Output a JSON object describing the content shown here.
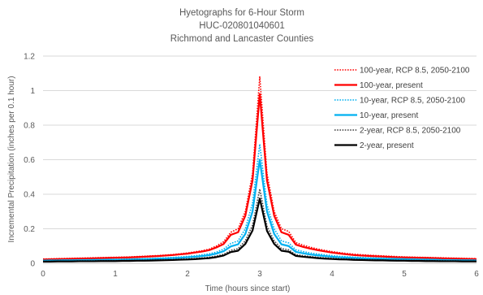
{
  "chart_data": {
    "type": "line",
    "title": [
      "Hyetographs for 6-Hour Storm",
      "HUC-020801040601",
      "Richmond and Lancaster Counties"
    ],
    "xlabel": "Time (hours since start)",
    "ylabel": "Incremental Precipitation (inches per 0.1 hour)",
    "xlim": [
      0,
      6
    ],
    "ylim": [
      0,
      1.2
    ],
    "xticks": [
      "0",
      "1",
      "2",
      "3",
      "4",
      "5",
      "6"
    ],
    "yticks": [
      "0",
      "0.2",
      "0.4",
      "0.6",
      "0.8",
      "1",
      "1.2"
    ],
    "grid": "horizontal",
    "legend_position": "top-right",
    "x": [
      0,
      0.1,
      0.2,
      0.3,
      0.4,
      0.5,
      0.6,
      0.7,
      0.8,
      0.9,
      1.0,
      1.1,
      1.2,
      1.3,
      1.4,
      1.5,
      1.6,
      1.7,
      1.8,
      1.9,
      2.0,
      2.1,
      2.2,
      2.3,
      2.4,
      2.5,
      2.6,
      2.7,
      2.8,
      2.9,
      3.0,
      3.1,
      3.2,
      3.3,
      3.4,
      3.5,
      3.6,
      3.7,
      3.8,
      3.9,
      4.0,
      4.1,
      4.2,
      4.3,
      4.4,
      4.5,
      4.6,
      4.7,
      4.8,
      4.9,
      5.0,
      5.1,
      5.2,
      5.3,
      5.4,
      5.5,
      5.6,
      5.7,
      5.8,
      5.9,
      6.0
    ],
    "series": [
      {
        "name": "100-year, RCP 8.5, 2050-2100",
        "color": "#ff0000",
        "dash": "dotted",
        "values": [
          0.025,
          0.026,
          0.027,
          0.028,
          0.029,
          0.03,
          0.031,
          0.032,
          0.033,
          0.034,
          0.035,
          0.036,
          0.037,
          0.039,
          0.041,
          0.043,
          0.045,
          0.048,
          0.051,
          0.055,
          0.06,
          0.066,
          0.073,
          0.082,
          0.1,
          0.125,
          0.18,
          0.2,
          0.3,
          0.52,
          1.08,
          0.52,
          0.3,
          0.2,
          0.185,
          0.12,
          0.105,
          0.093,
          0.083,
          0.075,
          0.068,
          0.062,
          0.057,
          0.053,
          0.05,
          0.047,
          0.045,
          0.043,
          0.041,
          0.039,
          0.037,
          0.036,
          0.035,
          0.034,
          0.033,
          0.032,
          0.031,
          0.03,
          0.029,
          0.028,
          0.027
        ]
      },
      {
        "name": "100-year, present",
        "color": "#ff0000",
        "dash": "solid",
        "values": [
          0.022,
          0.023,
          0.024,
          0.025,
          0.026,
          0.027,
          0.028,
          0.029,
          0.03,
          0.031,
          0.032,
          0.033,
          0.034,
          0.036,
          0.038,
          0.04,
          0.042,
          0.045,
          0.048,
          0.052,
          0.056,
          0.062,
          0.068,
          0.076,
          0.092,
          0.112,
          0.165,
          0.18,
          0.275,
          0.48,
          0.98,
          0.48,
          0.275,
          0.18,
          0.165,
          0.108,
          0.095,
          0.085,
          0.076,
          0.069,
          0.062,
          0.057,
          0.052,
          0.048,
          0.045,
          0.043,
          0.041,
          0.039,
          0.037,
          0.035,
          0.034,
          0.033,
          0.032,
          0.031,
          0.03,
          0.029,
          0.028,
          0.027,
          0.026,
          0.025,
          0.024
        ]
      },
      {
        "name": "10-year, RCP 8.5, 2050-2100",
        "color": "#00b0f0",
        "dash": "dotted",
        "values": [
          0.018,
          0.019,
          0.019,
          0.02,
          0.02,
          0.021,
          0.021,
          0.022,
          0.022,
          0.023,
          0.023,
          0.024,
          0.025,
          0.026,
          0.027,
          0.028,
          0.03,
          0.032,
          0.034,
          0.037,
          0.04,
          0.044,
          0.049,
          0.055,
          0.065,
          0.082,
          0.115,
          0.13,
          0.2,
          0.35,
          0.69,
          0.34,
          0.2,
          0.13,
          0.118,
          0.078,
          0.068,
          0.06,
          0.054,
          0.049,
          0.045,
          0.041,
          0.038,
          0.036,
          0.034,
          0.032,
          0.031,
          0.03,
          0.029,
          0.028,
          0.027,
          0.026,
          0.025,
          0.024,
          0.023,
          0.022,
          0.021,
          0.021,
          0.02,
          0.02,
          0.019
        ]
      },
      {
        "name": "10-year, present",
        "color": "#00b0f0",
        "dash": "solid",
        "values": [
          0.015,
          0.016,
          0.016,
          0.017,
          0.017,
          0.018,
          0.018,
          0.019,
          0.019,
          0.02,
          0.02,
          0.021,
          0.022,
          0.023,
          0.024,
          0.025,
          0.027,
          0.028,
          0.03,
          0.032,
          0.035,
          0.038,
          0.042,
          0.047,
          0.056,
          0.07,
          0.098,
          0.11,
          0.17,
          0.3,
          0.6,
          0.3,
          0.17,
          0.11,
          0.1,
          0.066,
          0.058,
          0.051,
          0.046,
          0.042,
          0.038,
          0.035,
          0.033,
          0.031,
          0.029,
          0.028,
          0.027,
          0.026,
          0.025,
          0.024,
          0.023,
          0.022,
          0.021,
          0.02,
          0.02,
          0.019,
          0.018,
          0.018,
          0.017,
          0.017,
          0.016
        ]
      },
      {
        "name": "2-year, RCP 8.5, 2050-2100",
        "color": "#404040",
        "dash": "dotted",
        "values": [
          0.012,
          0.012,
          0.013,
          0.013,
          0.013,
          0.014,
          0.014,
          0.014,
          0.015,
          0.015,
          0.015,
          0.016,
          0.016,
          0.017,
          0.018,
          0.019,
          0.02,
          0.021,
          0.022,
          0.024,
          0.026,
          0.028,
          0.031,
          0.035,
          0.042,
          0.052,
          0.075,
          0.085,
          0.13,
          0.22,
          0.43,
          0.215,
          0.13,
          0.085,
          0.078,
          0.05,
          0.044,
          0.039,
          0.035,
          0.032,
          0.029,
          0.027,
          0.025,
          0.024,
          0.022,
          0.021,
          0.02,
          0.019,
          0.018,
          0.018,
          0.017,
          0.017,
          0.016,
          0.016,
          0.015,
          0.015,
          0.014,
          0.014,
          0.013,
          0.013,
          0.013
        ]
      },
      {
        "name": "2-year, present",
        "color": "#000000",
        "dash": "solid",
        "values": [
          0.01,
          0.01,
          0.011,
          0.011,
          0.011,
          0.012,
          0.012,
          0.012,
          0.013,
          0.013,
          0.013,
          0.014,
          0.014,
          0.015,
          0.015,
          0.016,
          0.017,
          0.018,
          0.019,
          0.021,
          0.022,
          0.024,
          0.027,
          0.03,
          0.036,
          0.045,
          0.065,
          0.073,
          0.112,
          0.19,
          0.375,
          0.188,
          0.112,
          0.073,
          0.067,
          0.043,
          0.038,
          0.034,
          0.03,
          0.027,
          0.025,
          0.023,
          0.022,
          0.02,
          0.019,
          0.018,
          0.017,
          0.017,
          0.016,
          0.015,
          0.015,
          0.014,
          0.014,
          0.013,
          0.013,
          0.012,
          0.012,
          0.012,
          0.011,
          0.011,
          0.011
        ]
      }
    ]
  }
}
